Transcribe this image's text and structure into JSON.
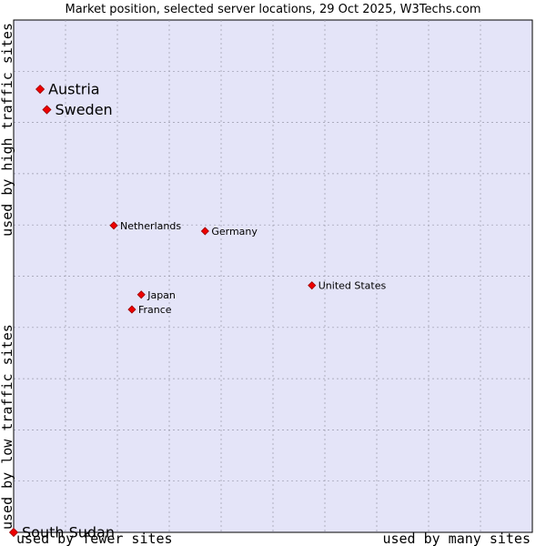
{
  "chart_data": {
    "type": "scatter",
    "title": "Market position, selected server locations, 29 Oct 2025, W3Techs.com",
    "xlabel_left": "used by fewer sites",
    "xlabel_right": "used by many sites",
    "ylabel_low": "used by low traffic sites",
    "ylabel_high": "used by high traffic sites",
    "xlim": [
      0,
      100
    ],
    "ylim": [
      0,
      100
    ],
    "grid": true,
    "colors": {
      "plot_bg": "#e4e4f8",
      "grid": "#9999aa",
      "marker": "#ee0000",
      "marker_stroke": "#990000"
    },
    "points": [
      {
        "name": "Austria",
        "x": 5.1,
        "y": 86.5,
        "emphasis": true
      },
      {
        "name": "Sweden",
        "x": 6.4,
        "y": 82.5,
        "emphasis": true
      },
      {
        "name": "Netherlands",
        "x": 19.3,
        "y": 59.9,
        "emphasis": false
      },
      {
        "name": "Germany",
        "x": 36.9,
        "y": 58.8,
        "emphasis": false
      },
      {
        "name": "United States",
        "x": 57.5,
        "y": 48.2,
        "emphasis": false
      },
      {
        "name": "Japan",
        "x": 24.6,
        "y": 46.4,
        "emphasis": false
      },
      {
        "name": "France",
        "x": 22.8,
        "y": 43.5,
        "emphasis": false
      },
      {
        "name": "South Sudan",
        "x": 0,
        "y": 0,
        "emphasis": true
      }
    ]
  }
}
